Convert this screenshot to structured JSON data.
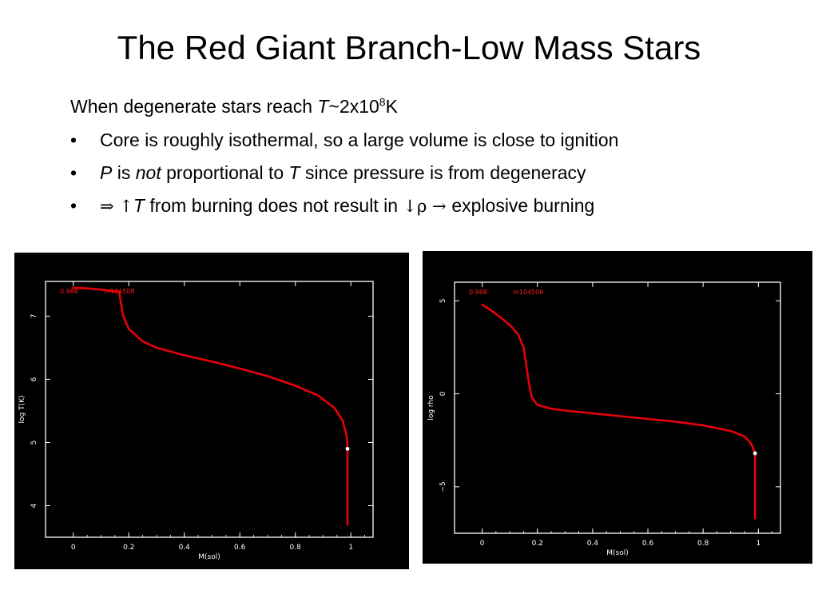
{
  "slide": {
    "title": "The Red Giant Branch-Low Mass Stars",
    "line1": {
      "a": "When degenerate stars reach ",
      "t": "T",
      "b": "~2x10",
      "sup": "8",
      "c": "K"
    },
    "bullet_char": "•",
    "bullet1": "Core is roughly isothermal, so a large volume is close to ignition",
    "bullet2": {
      "p": "P",
      "a": " is ",
      "not": "not",
      "b": " proportional to ",
      "t": "T",
      "c": " since pressure is from degeneracy"
    },
    "bullet3": {
      "implies": "⇒ ",
      "up": "↑",
      "t": "T",
      "a": " from burning does not result in ",
      "down": "↓",
      "rho": "ρ",
      "arrow": " → ",
      "b": "explosive burning"
    }
  },
  "chart_data": [
    {
      "type": "line",
      "title": "",
      "xlabel": "M(sol)",
      "ylabel": "log T(K)",
      "xlim": [
        -0.1,
        1.08
      ],
      "ylim": [
        3.5,
        7.55
      ],
      "x_ticks": [
        "0",
        "0.2",
        "0.4",
        "0.6",
        "0.8",
        "1"
      ],
      "y_ticks": [
        "4",
        "5",
        "6",
        "7"
      ],
      "annotations": [
        "0.988",
        "m104508"
      ],
      "colors": {
        "line": "#e8000b",
        "frame": "#ffffff",
        "text_annot": "#ff1a1a",
        "background": "#000000"
      },
      "series": [
        {
          "x": [
            0.0,
            0.05,
            0.1,
            0.15,
            0.165,
            0.17,
            0.18,
            0.2,
            0.25,
            0.3,
            0.4,
            0.5,
            0.6,
            0.7,
            0.8,
            0.88,
            0.94,
            0.97,
            0.985,
            0.988,
            0.988
          ],
          "y": [
            7.45,
            7.44,
            7.42,
            7.39,
            7.39,
            7.25,
            7.0,
            6.8,
            6.6,
            6.5,
            6.38,
            6.28,
            6.17,
            6.05,
            5.9,
            5.75,
            5.55,
            5.35,
            5.1,
            4.9,
            3.7
          ]
        }
      ],
      "marker": {
        "x": 0.988,
        "y": 4.9
      }
    },
    {
      "type": "line",
      "title": "",
      "xlabel": "M(sol)",
      "ylabel": "log rho",
      "xlim": [
        -0.1,
        1.08
      ],
      "ylim": [
        -7.5,
        6.0
      ],
      "x_ticks": [
        "0",
        "0.2",
        "0.4",
        "0.6",
        "0.8",
        "1"
      ],
      "y_ticks": [
        "5",
        "0",
        "−5"
      ],
      "annotations": [
        "0.988",
        "m104508"
      ],
      "colors": {
        "line": "#e8000b",
        "frame": "#ffffff",
        "text_annot": "#ff1a1a",
        "background": "#000000"
      },
      "series": [
        {
          "x": [
            0.0,
            0.05,
            0.1,
            0.13,
            0.15,
            0.16,
            0.17,
            0.18,
            0.2,
            0.25,
            0.3,
            0.4,
            0.5,
            0.6,
            0.7,
            0.8,
            0.9,
            0.95,
            0.975,
            0.988,
            0.988
          ],
          "y": [
            4.8,
            4.3,
            3.7,
            3.2,
            2.5,
            1.5,
            0.5,
            -0.2,
            -0.6,
            -0.8,
            -0.9,
            -1.05,
            -1.2,
            -1.35,
            -1.5,
            -1.7,
            -2.0,
            -2.3,
            -2.7,
            -3.2,
            -6.7
          ]
        }
      ],
      "marker": {
        "x": 0.988,
        "y": -3.2
      }
    }
  ]
}
